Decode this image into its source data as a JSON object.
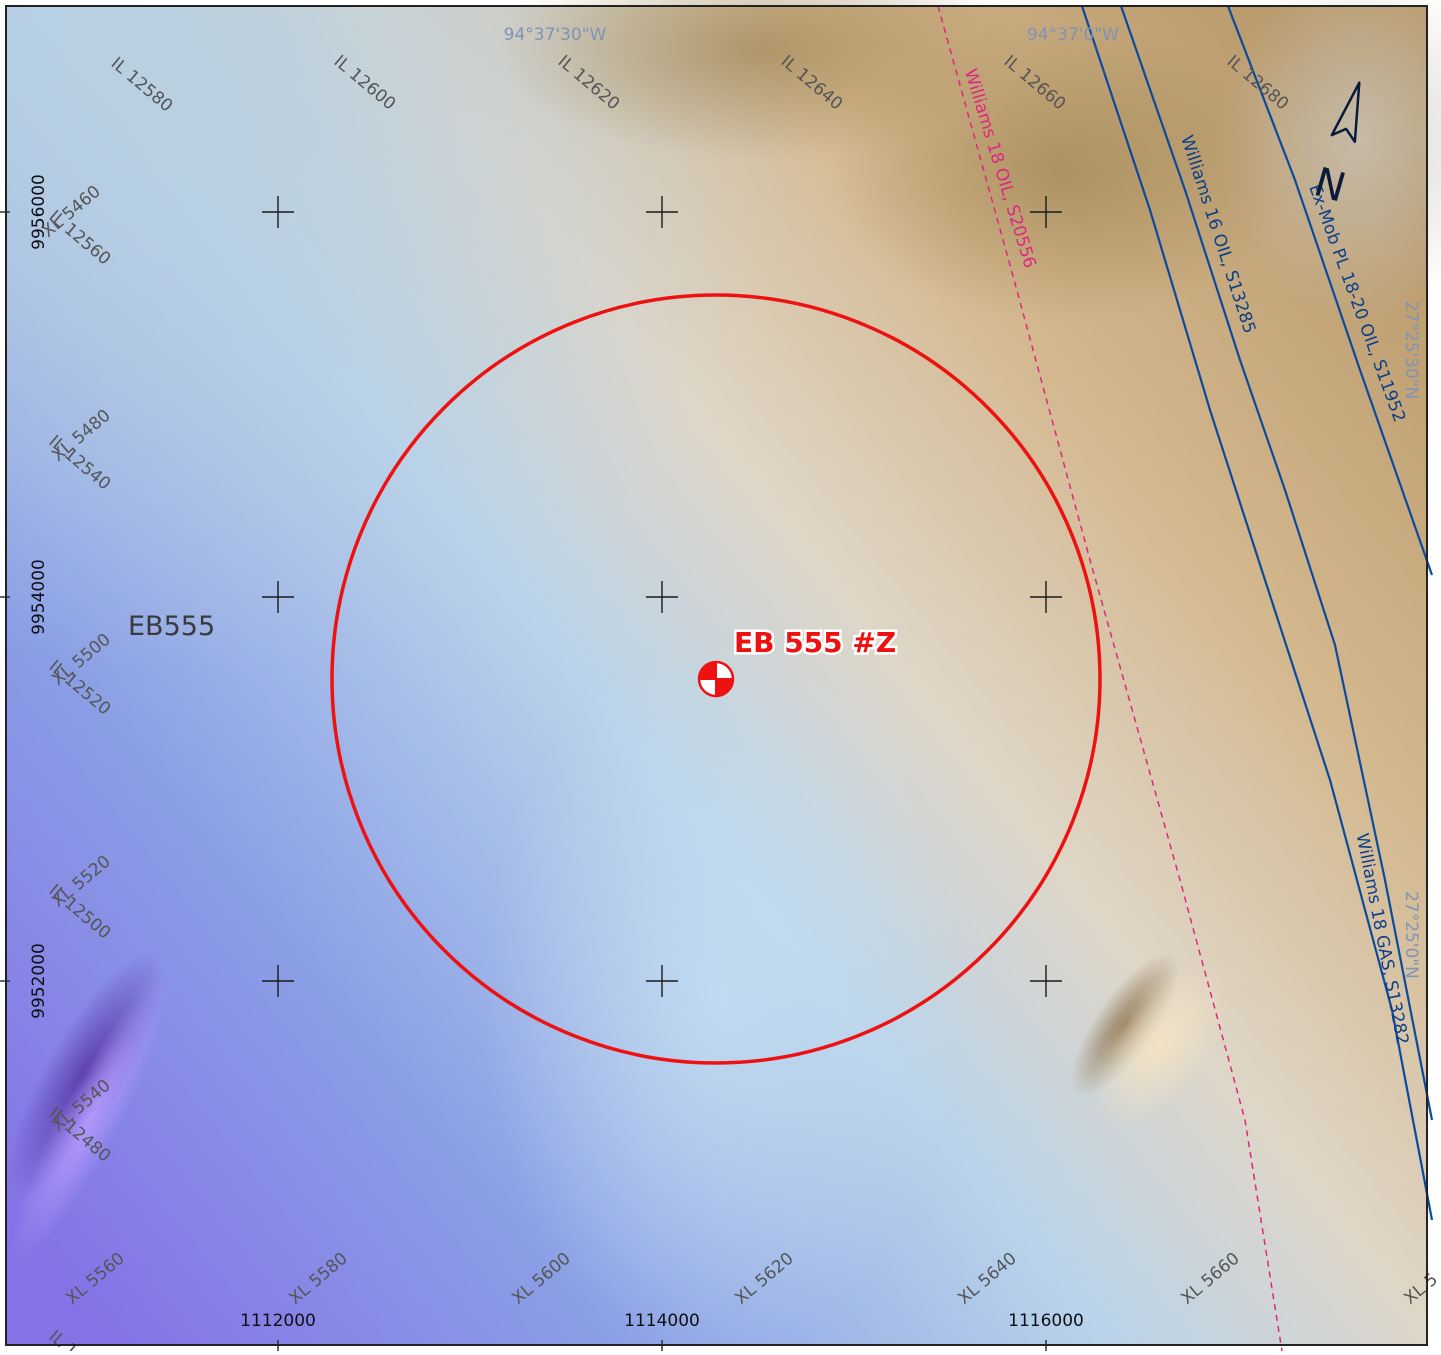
{
  "map": {
    "block_label": "EB555",
    "well": {
      "label": "EB 555 #Z",
      "symbol": "well-symbol-icon"
    },
    "north_arrow": {
      "letter": "N",
      "icon": "north-arrow-icon"
    },
    "easting_ticks": [
      "1112000",
      "1114000",
      "1116000"
    ],
    "northing_ticks": [
      "9956000",
      "9954000",
      "9952000"
    ],
    "longitude_labels": [
      "94°37'30\"W",
      "94°37'0\"W"
    ],
    "latitude_labels": [
      "27°25'30\"N",
      "27°25'0\"N"
    ],
    "inline_labels": [
      "IL 12580",
      "IL 12600",
      "IL 12620",
      "IL 12640",
      "IL 12660",
      "IL 12680",
      "IL 12560",
      "IL 12540",
      "IL 12520",
      "IL 12500",
      "IL 12480",
      "IL 1"
    ],
    "crossline_labels": [
      "XL 5460",
      "XL 5480",
      "XL 5500",
      "XL 5520",
      "XL 5540",
      "XL 5560",
      "XL 5580",
      "XL 5600",
      "XL 5620",
      "XL 5640",
      "XL 5660",
      "XL 5"
    ],
    "pipelines": [
      {
        "label": "Williams 18 OIL, S20556",
        "color": "#e0267f",
        "style": "dashed"
      },
      {
        "label": "Williams 16 OIL, S13285",
        "color": "#0b4a9c",
        "style": "solid"
      },
      {
        "label": "Ex-Mob PL 18-20 OIL, S11952",
        "color": "#0b4a9c",
        "style": "solid"
      },
      {
        "label": "Williams 18 GAS, S13282",
        "color": "#0b4a9c",
        "style": "solid"
      }
    ],
    "colors": {
      "radius_circle": "#ee1111",
      "grid_cross": "#1a1a1a",
      "shallow": "#c9a679",
      "deep": "#7d7ee6"
    }
  }
}
